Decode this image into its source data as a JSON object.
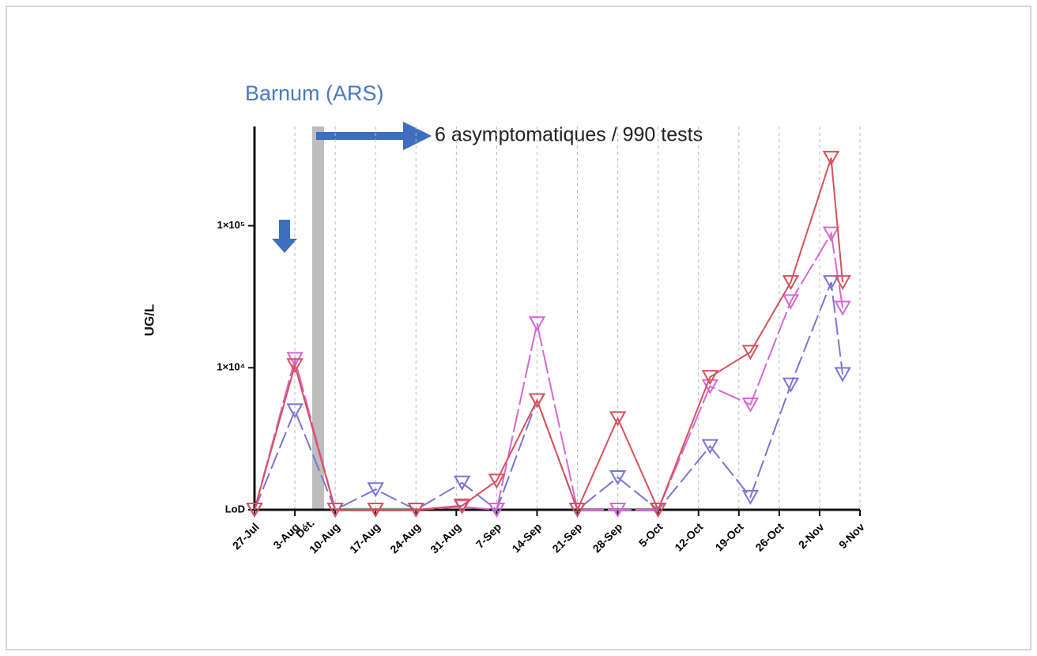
{
  "chart_data": {
    "type": "line",
    "title": "Barnum (ARS)",
    "annotation": "6 asymptomatiques / 990  tests",
    "event_label": "Dét.",
    "y_label": "UG/L",
    "ylog": true,
    "grid": true,
    "xlim": [
      0,
      105
    ],
    "xticks": [
      {
        "value": 0,
        "label": "27-Jul"
      },
      {
        "value": 7,
        "label": "3-Aug"
      },
      {
        "value": 14,
        "label": "10-Aug"
      },
      {
        "value": 21,
        "label": "17-Aug"
      },
      {
        "value": 28,
        "label": "24-Aug"
      },
      {
        "value": 35,
        "label": "31-Aug"
      },
      {
        "value": 42,
        "label": "7-Sep"
      },
      {
        "value": 49,
        "label": "14-Sep"
      },
      {
        "value": 56,
        "label": "21-Sep"
      },
      {
        "value": 63,
        "label": "28-Sep"
      },
      {
        "value": 70,
        "label": "5-Oct"
      },
      {
        "value": 77,
        "label": "12-Oct"
      },
      {
        "value": 84,
        "label": "19-Oct"
      },
      {
        "value": 91,
        "label": "26-Oct"
      },
      {
        "value": 98,
        "label": "2-Nov"
      },
      {
        "value": 105,
        "label": "9-Nov"
      }
    ],
    "ylim": [
      1000,
      500000
    ],
    "yticks": [
      {
        "value": 1000,
        "label": "LoD"
      },
      {
        "value": 10000,
        "label": "1×10⁴"
      },
      {
        "value": 100000,
        "label": "1×10⁵"
      }
    ],
    "x": [
      0,
      7,
      14,
      21,
      28,
      36,
      42,
      49,
      56,
      63,
      70,
      79,
      86,
      93,
      100,
      102
    ],
    "series": [
      {
        "color": "#7b74d8",
        "values": [
          1000,
          5000,
          1000,
          1390,
          1000,
          1550,
          1000,
          5900,
          1000,
          1690,
          1000,
          2800,
          1230,
          7600,
          40000,
          9000
        ]
      },
      {
        "color": "#d866d6",
        "values": [
          1000,
          11500,
          1000,
          1000,
          1000,
          1050,
          1000,
          20500,
          1000,
          1000,
          1000,
          7400,
          5500,
          29300,
          88000,
          26400
        ]
      },
      {
        "color": "#d8505a",
        "values": [
          1000,
          10400,
          1000,
          1000,
          1000,
          1070,
          1600,
          5900,
          1000,
          4400,
          1000,
          8600,
          12900,
          40000,
          300000,
          40000
        ]
      }
    ]
  }
}
